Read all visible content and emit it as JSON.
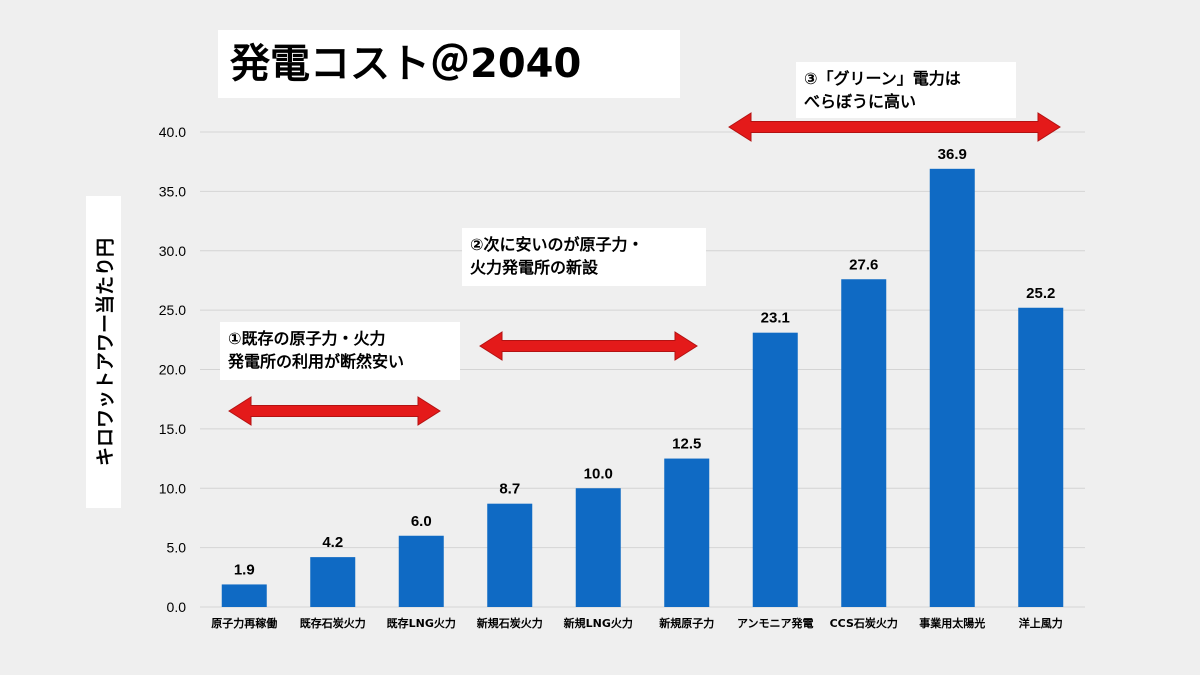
{
  "title": "発電コスト＠2040",
  "annotations": [
    {
      "lines": [
        "①既存の原子力・火力",
        "発電所の利用が断然安い"
      ]
    },
    {
      "lines": [
        "②次に安いのが原子力・",
        "火力発電所の新設"
      ]
    },
    {
      "lines": [
        "③「グリーン」電力は",
        "べらぼうに高い"
      ]
    }
  ],
  "colors": {
    "bar": "#0f6ac4",
    "arrow": "#e41a1a",
    "grid": "#d4d4d4"
  },
  "chart_data": {
    "type": "bar",
    "title": "発電コスト＠2040",
    "xlabel": "",
    "ylabel": "キロワットアワー当たり円",
    "ylim": [
      0,
      40
    ],
    "yticks": [
      "0.0",
      "5.0",
      "10.0",
      "15.0",
      "20.0",
      "25.0",
      "30.0",
      "35.0",
      "40.0"
    ],
    "grid": true,
    "categories": [
      "原子力再稼働",
      "既存石炭火力",
      "既存LNG火力",
      "新規石炭火力",
      "新規LNG火力",
      "新規原子力",
      "アンモニア発電",
      "CCS石炭火力",
      "事業用太陽光",
      "洋上風力"
    ],
    "values": [
      1.9,
      4.2,
      6.0,
      8.7,
      10.0,
      12.5,
      23.1,
      27.6,
      36.9,
      25.2
    ],
    "value_labels": [
      "1.9",
      "4.2",
      "6.0",
      "8.7",
      "10.0",
      "12.5",
      "23.1",
      "27.6",
      "36.9",
      "25.2"
    ]
  }
}
